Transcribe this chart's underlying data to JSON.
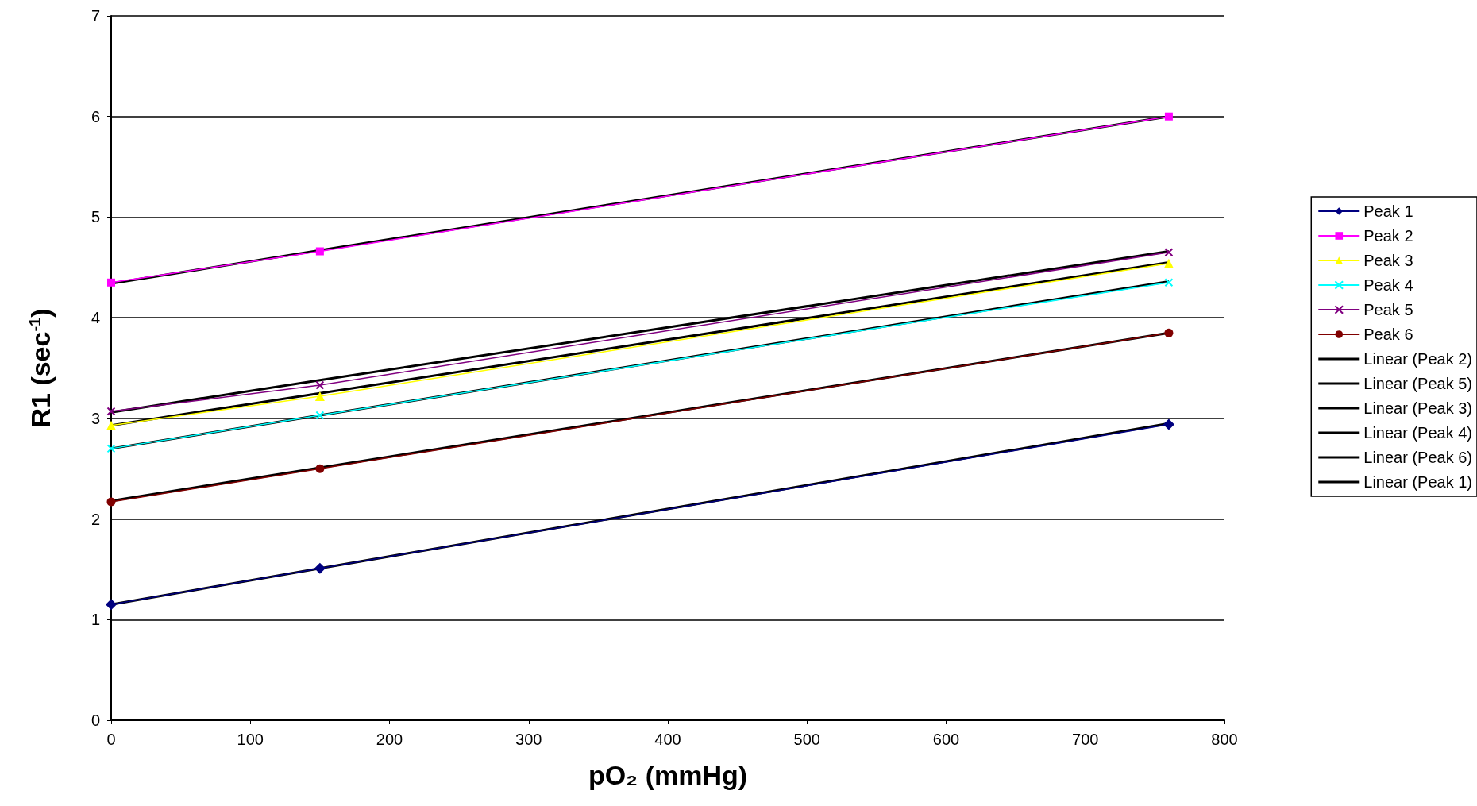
{
  "chart_data": {
    "type": "line",
    "xlabel": "pO₂ (mmHg)",
    "ylabel": "R1 (sec$^{-1}$)",
    "xlim": [
      0,
      800
    ],
    "xticks": [
      0,
      100,
      200,
      300,
      400,
      500,
      600,
      700,
      800
    ],
    "ylim": [
      0,
      7
    ],
    "yticks": [
      0,
      1,
      2,
      3,
      4,
      5,
      6,
      7
    ],
    "grid": "y",
    "legend": "right",
    "x": [
      0,
      150,
      760
    ],
    "series": [
      {
        "name": "Peak 1",
        "color": "#000080",
        "marker": "diamond",
        "values": [
          1.15,
          1.51,
          2.94
        ]
      },
      {
        "name": "Peak 2",
        "color": "#ff00ff",
        "marker": "square",
        "values": [
          4.35,
          4.66,
          6.0
        ]
      },
      {
        "name": "Peak 3",
        "color": "#ffff00",
        "marker": "triangle",
        "values": [
          2.93,
          3.22,
          4.54
        ]
      },
      {
        "name": "Peak 4",
        "color": "#00ffff",
        "marker": "cross",
        "values": [
          2.7,
          3.03,
          4.35
        ]
      },
      {
        "name": "Peak 5",
        "color": "#800080",
        "marker": "cross",
        "values": [
          3.07,
          3.33,
          4.65
        ]
      },
      {
        "name": "Peak 6",
        "color": "#800000",
        "marker": "circle",
        "values": [
          2.17,
          2.5,
          3.85
        ]
      },
      {
        "name": "Linear (Peak 2)",
        "color": "#000000",
        "marker": "none",
        "values": [
          4.34,
          4.67,
          6.0
        ]
      },
      {
        "name": "Linear (Peak 5)",
        "color": "#000000",
        "marker": "none",
        "values": [
          3.06,
          3.38,
          4.66
        ]
      },
      {
        "name": "Linear (Peak 3)",
        "color": "#000000",
        "marker": "none",
        "values": [
          2.93,
          3.25,
          4.55
        ]
      },
      {
        "name": "Linear (Peak 4)",
        "color": "#000000",
        "marker": "none",
        "values": [
          2.7,
          3.03,
          4.36
        ]
      },
      {
        "name": "Linear (Peak 6)",
        "color": "#000000",
        "marker": "none",
        "values": [
          2.18,
          2.51,
          3.85
        ]
      },
      {
        "name": "Linear (Peak 1)",
        "color": "#000000",
        "marker": "none",
        "values": [
          1.15,
          1.51,
          2.95
        ]
      }
    ]
  }
}
